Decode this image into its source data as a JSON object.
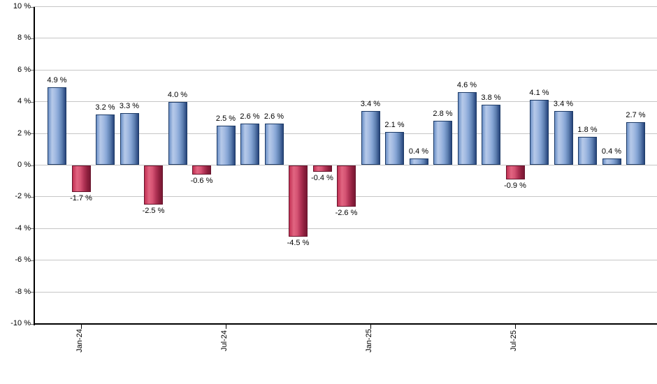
{
  "chart_data": {
    "type": "bar",
    "title": "",
    "unit": "%",
    "grid": true,
    "legend": false,
    "ylim": [
      -10,
      10
    ],
    "values": [
      4.9,
      -1.7,
      3.2,
      3.3,
      -2.5,
      4.0,
      -0.6,
      2.5,
      2.6,
      2.6,
      -4.5,
      -0.4,
      -2.6,
      3.4,
      2.1,
      0.4,
      2.8,
      4.6,
      3.8,
      -0.9,
      4.1,
      3.4,
      1.8,
      0.4,
      2.7
    ],
    "bar_labels": [
      "4.9 %",
      "-1.7 %",
      "3.2 %",
      "3.3 %",
      "-2.5 %",
      "4.0 %",
      "-0.6 %",
      "2.5 %",
      "2.6 %",
      "2.6 %",
      "-4.5 %",
      "-0.4 %",
      "-2.6 %",
      "3.4 %",
      "2.1 %",
      "0.4 %",
      "2.8 %",
      "4.6 %",
      "3.8 %",
      "-0.9 %",
      "4.1 %",
      "3.4 %",
      "1.8 %",
      "0.4 %",
      "2.7 %"
    ],
    "x_ticks": [
      {
        "bar_index": 1,
        "label": "Jan-24"
      },
      {
        "bar_index": 7,
        "label": "Jul-24"
      },
      {
        "bar_index": 13,
        "label": "Jan-25"
      },
      {
        "bar_index": 19,
        "label": "Jul-25"
      }
    ],
    "y_ticks": [
      {
        "value": 10,
        "label": "10 %"
      },
      {
        "value": 8,
        "label": "8 %"
      },
      {
        "value": 6,
        "label": "6 %"
      },
      {
        "value": 4,
        "label": "4 %"
      },
      {
        "value": 2,
        "label": "2 %"
      },
      {
        "value": 0,
        "label": "0 %"
      },
      {
        "value": -2,
        "label": "-2 %"
      },
      {
        "value": -4,
        "label": "-4 %"
      },
      {
        "value": -6,
        "label": "-6 %"
      },
      {
        "value": -8,
        "label": "-8 %"
      },
      {
        "value": -10,
        "label": "-10 %"
      }
    ],
    "colors": {
      "positive_bar": "#8ba7d7",
      "positive_bar_border": "#1c3a66",
      "negative_bar": "#c64a67",
      "negative_bar_border": "#67142c",
      "gridline": "#c6c6c6",
      "axis": "#000000",
      "label_text": "#000000"
    }
  }
}
